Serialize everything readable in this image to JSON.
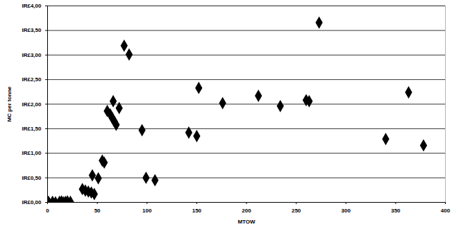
{
  "chart_data": {
    "type": "scatter",
    "x_label": "MTOW",
    "y_label": "MC per tonne",
    "x": [
      1,
      5,
      8,
      12,
      14,
      16,
      18,
      20,
      23,
      35,
      38,
      41,
      44,
      47,
      45,
      51,
      55,
      57,
      60,
      63,
      65,
      67,
      69,
      66,
      72,
      77,
      82,
      95,
      99,
      108,
      142,
      150,
      152,
      176,
      212,
      234,
      260,
      263,
      273,
      340,
      363,
      378
    ],
    "values": [
      0.01,
      0.01,
      0.0,
      0.01,
      0.02,
      0.0,
      0.01,
      0.02,
      0.01,
      0.27,
      0.24,
      0.22,
      0.2,
      0.17,
      0.55,
      0.49,
      0.85,
      0.81,
      1.86,
      1.79,
      1.72,
      1.65,
      1.58,
      2.06,
      1.92,
      3.19,
      3.01,
      1.47,
      0.5,
      0.45,
      1.42,
      1.35,
      2.33,
      2.02,
      2.17,
      1.96,
      2.08,
      2.06,
      3.66,
      1.29,
      2.24,
      1.16
    ],
    "color": "#000000",
    "marker": "diamond",
    "xlim": [
      0,
      400
    ],
    "xticks": [
      0,
      50,
      100,
      150,
      200,
      250,
      300,
      350,
      400
    ],
    "ylim": [
      0,
      4
    ],
    "yticks": [
      {
        "value": 0,
        "label": "IR£0,00"
      },
      {
        "value": 0.5,
        "label": "IR£0,50"
      },
      {
        "value": 1,
        "label": "IR£1,00"
      },
      {
        "value": 1.5,
        "label": "IR£1,50"
      },
      {
        "value": 2,
        "label": "IR£2,00"
      },
      {
        "value": 2.5,
        "label": "IR£2,50"
      },
      {
        "value": 3,
        "label": "IR£3,00"
      },
      {
        "value": 3.5,
        "label": "IR£3,50"
      },
      {
        "value": 4,
        "label": "IR£4,00"
      }
    ],
    "grid": true
  }
}
